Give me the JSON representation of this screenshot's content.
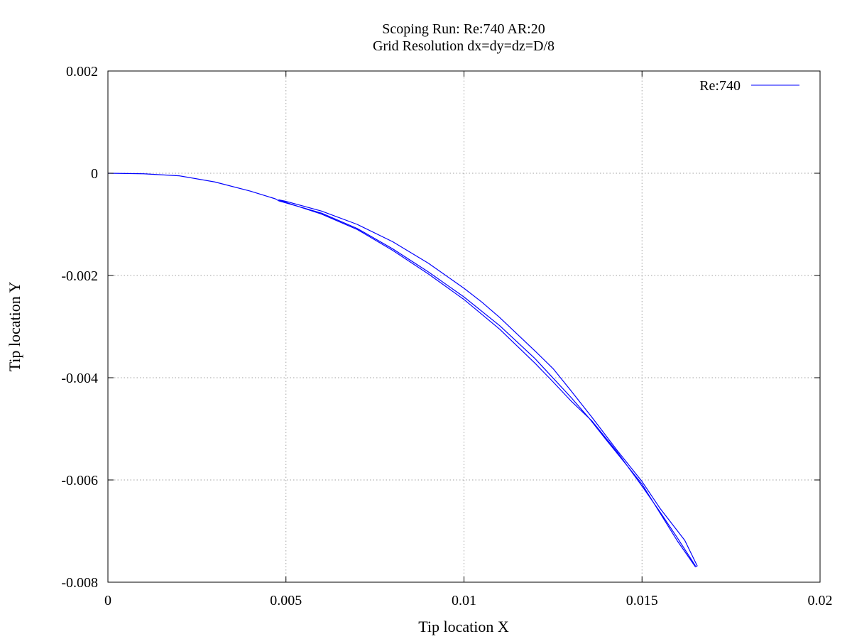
{
  "chart_data": {
    "type": "line",
    "title": "Scoping Run: Re:740  AR:20",
    "subtitle": "Grid Resolution dx=dy=dz=D/8",
    "xlabel": "Tip location X",
    "ylabel": "Tip location Y",
    "xlim": [
      0,
      0.02
    ],
    "ylim": [
      -0.008,
      0.002
    ],
    "xticks": [
      0,
      0.005,
      0.01,
      0.015,
      0.02
    ],
    "xtick_labels": [
      "0",
      "0.005",
      "0.01",
      "0.015",
      "0.02"
    ],
    "yticks": [
      0.002,
      0,
      -0.002,
      -0.004,
      -0.006,
      -0.008
    ],
    "ytick_labels": [
      "0.002",
      "0",
      "-0.002",
      "-0.004",
      "-0.006",
      "-0.008"
    ],
    "grid": true,
    "legend_position": "top-right",
    "series": [
      {
        "name": "Re:740",
        "color": "#0000ff",
        "x": [
          0,
          0.001,
          0.002,
          0.003,
          0.004,
          0.0047,
          0.0048,
          0.005,
          0.006,
          0.007,
          0.008,
          0.009,
          0.01,
          0.011,
          0.012,
          0.013,
          0.0135,
          0.014,
          0.015,
          0.016,
          0.0165,
          0.01655,
          0.0162,
          0.0155,
          0.015,
          0.0143,
          0.0136,
          0.013,
          0.0125,
          0.012,
          0.011,
          0.0105,
          0.01,
          0.009,
          0.008,
          0.007,
          0.006,
          0.005,
          0.0048,
          0.005,
          0.006,
          0.007,
          0.008,
          0.009,
          0.01,
          0.011,
          0.012,
          0.0125,
          0.013,
          0.0136,
          0.0143,
          0.015,
          0.0155,
          0.016,
          0.0165
        ],
        "y": [
          0,
          -1e-05,
          -5e-05,
          -0.00017,
          -0.00035,
          -0.0005,
          -0.00054,
          -0.00058,
          -0.00078,
          -0.00108,
          -0.00148,
          -0.00193,
          -0.00242,
          -0.00298,
          -0.00363,
          -0.00438,
          -0.00478,
          -0.00522,
          -0.00608,
          -0.0072,
          -0.0077,
          -0.00768,
          -0.00718,
          -0.00655,
          -0.00603,
          -0.00542,
          -0.00478,
          -0.00425,
          -0.00382,
          -0.00348,
          -0.00282,
          -0.00252,
          -0.00225,
          -0.00176,
          -0.00134,
          -0.001,
          -0.00074,
          -0.00055,
          -0.00052,
          -0.00057,
          -0.0008,
          -0.0011,
          -0.00151,
          -0.00197,
          -0.00247,
          -0.00305,
          -0.00372,
          -0.00408,
          -0.00445,
          -0.00485,
          -0.00545,
          -0.00612,
          -0.00662,
          -0.00714,
          -0.00768
        ]
      }
    ]
  }
}
